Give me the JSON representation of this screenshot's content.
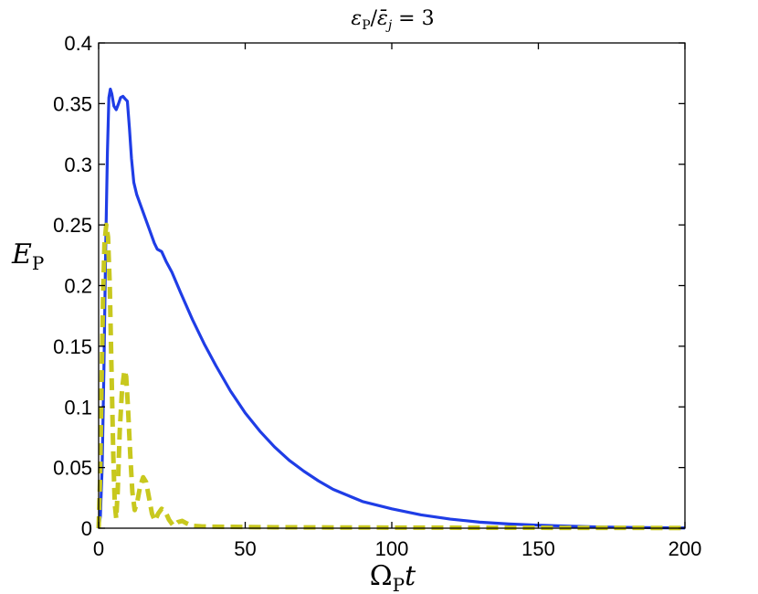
{
  "chart_data": {
    "type": "line",
    "title": {
      "eps": "ε",
      "eps_sub": "P",
      "slash": "/",
      "epsbar": "ε̄",
      "epsbar_sub": "j",
      "rest": " = 3"
    },
    "xlabel": {
      "main": "Ω",
      "sub": "P",
      "tail": "t"
    },
    "ylabel": {
      "main": "E",
      "sub": "P"
    },
    "xlim": [
      0,
      200
    ],
    "ylim": [
      0,
      0.4
    ],
    "x_ticks": [
      "0",
      "50",
      "100",
      "150",
      "200"
    ],
    "y_ticks": [
      "0",
      "0.05",
      "0.1",
      "0.15",
      "0.2",
      "0.25",
      "0.3",
      "0.35",
      "0.4"
    ],
    "grid": false,
    "series": [
      {
        "style": "solid",
        "color": "#1f3de6",
        "points": [
          [
            0,
            0
          ],
          [
            0.6,
            0.01
          ],
          [
            1.2,
            0.05
          ],
          [
            1.8,
            0.13
          ],
          [
            2.4,
            0.23
          ],
          [
            3.0,
            0.31
          ],
          [
            3.5,
            0.355
          ],
          [
            4.0,
            0.362
          ],
          [
            4.5,
            0.358
          ],
          [
            5.2,
            0.348
          ],
          [
            6.0,
            0.345
          ],
          [
            6.8,
            0.35
          ],
          [
            7.5,
            0.355
          ],
          [
            8.3,
            0.356
          ],
          [
            9.0,
            0.354
          ],
          [
            9.8,
            0.352
          ],
          [
            10.5,
            0.33
          ],
          [
            11.2,
            0.305
          ],
          [
            12.0,
            0.285
          ],
          [
            13.0,
            0.275
          ],
          [
            14.5,
            0.265
          ],
          [
            16.0,
            0.255
          ],
          [
            17.5,
            0.245
          ],
          [
            19.0,
            0.235
          ],
          [
            20.0,
            0.23
          ],
          [
            21.5,
            0.228
          ],
          [
            23.0,
            0.22
          ],
          [
            25,
            0.211
          ],
          [
            28,
            0.194
          ],
          [
            32,
            0.172
          ],
          [
            36,
            0.152
          ],
          [
            40,
            0.134
          ],
          [
            45,
            0.113
          ],
          [
            50,
            0.095
          ],
          [
            55,
            0.08
          ],
          [
            60,
            0.067
          ],
          [
            65,
            0.056
          ],
          [
            70,
            0.047
          ],
          [
            75,
            0.039
          ],
          [
            80,
            0.032
          ],
          [
            85,
            0.027
          ],
          [
            90,
            0.022
          ],
          [
            95,
            0.019
          ],
          [
            100,
            0.016
          ],
          [
            110,
            0.011
          ],
          [
            120,
            0.0075
          ],
          [
            130,
            0.005
          ],
          [
            140,
            0.0035
          ],
          [
            150,
            0.0025
          ],
          [
            160,
            0.0017
          ],
          [
            170,
            0.0011
          ],
          [
            180,
            0.0007
          ],
          [
            190,
            0.0004
          ],
          [
            200,
            0.0002
          ]
        ]
      },
      {
        "style": "dashed",
        "color": "#c8c81e",
        "points": [
          [
            0,
            0
          ],
          [
            0.5,
            0.04
          ],
          [
            1.0,
            0.12
          ],
          [
            1.5,
            0.19
          ],
          [
            2.0,
            0.235
          ],
          [
            2.6,
            0.25
          ],
          [
            3.2,
            0.24
          ],
          [
            3.8,
            0.2
          ],
          [
            4.4,
            0.13
          ],
          [
            5.0,
            0.06
          ],
          [
            5.5,
            0.02
          ],
          [
            6.0,
            0.008
          ],
          [
            6.5,
            0.03
          ],
          [
            7.2,
            0.08
          ],
          [
            8.0,
            0.115
          ],
          [
            8.8,
            0.13
          ],
          [
            9.4,
            0.125
          ],
          [
            10.0,
            0.1
          ],
          [
            10.8,
            0.06
          ],
          [
            11.5,
            0.03
          ],
          [
            12.3,
            0.015
          ],
          [
            13.2,
            0.022
          ],
          [
            14.2,
            0.035
          ],
          [
            15.2,
            0.042
          ],
          [
            16.2,
            0.038
          ],
          [
            17.2,
            0.025
          ],
          [
            18.2,
            0.012
          ],
          [
            19.2,
            0.006
          ],
          [
            20.3,
            0.012
          ],
          [
            21.5,
            0.016
          ],
          [
            22.7,
            0.014
          ],
          [
            24.0,
            0.007
          ],
          [
            25.5,
            0.002
          ],
          [
            27.0,
            0.005
          ],
          [
            28.5,
            0.006
          ],
          [
            30,
            0.004
          ],
          [
            32,
            0.002
          ],
          [
            35,
            0.0015
          ],
          [
            40,
            0.0012
          ],
          [
            50,
            0.001
          ],
          [
            60,
            0.0008
          ],
          [
            80,
            0.0006
          ],
          [
            100,
            0.0005
          ],
          [
            130,
            0.0004
          ],
          [
            160,
            0.0003
          ],
          [
            200,
            0.0002
          ]
        ]
      }
    ]
  }
}
